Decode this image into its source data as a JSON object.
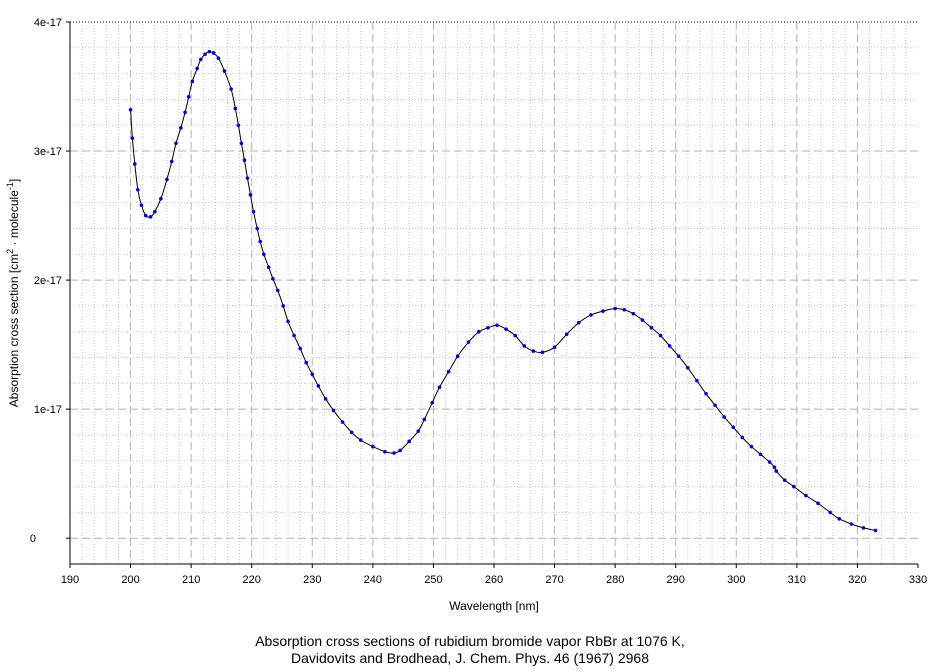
{
  "chart_data": {
    "type": "line",
    "xlabel": "Wavelength [nm]",
    "ylabel_main": "Absorption cross section [cm",
    "ylabel_sup1": "2",
    "ylabel_mid": " · molecule",
    "ylabel_sup2": "-1",
    "ylabel_end": "]",
    "xlim": [
      190,
      330
    ],
    "ylim": [
      -2e-18,
      4e-17
    ],
    "x_ticks": [
      190,
      200,
      210,
      220,
      230,
      240,
      250,
      260,
      270,
      280,
      290,
      300,
      310,
      320,
      330
    ],
    "y_ticks": [
      {
        "value": 0,
        "label": "0"
      },
      {
        "value": 1e-17,
        "label": "1e-17"
      },
      {
        "value": 2e-17,
        "label": "2e-17"
      },
      {
        "value": 3e-17,
        "label": "3e-17"
      },
      {
        "value": 4e-17,
        "label": "4e-17"
      }
    ],
    "grid": true,
    "line_color": "#000000",
    "marker_color": "#0000cc",
    "series": [
      {
        "x": [
          200.0,
          200.3,
          200.7,
          201.2,
          201.8,
          202.5,
          203.3,
          204.0,
          205.0,
          206.0,
          206.8,
          207.5,
          208.3,
          209.0,
          209.6,
          210.2,
          211.0,
          211.6,
          212.3,
          213.0,
          213.7,
          214.5,
          215.5,
          216.6,
          217.3,
          217.8,
          218.3,
          218.8,
          219.3,
          219.8,
          220.3,
          220.9,
          221.4,
          222.0,
          222.8,
          223.5,
          224.3,
          225.2,
          226.0,
          227.0,
          228.0,
          229.0,
          230.0,
          231.0,
          232.2,
          233.5,
          235.0,
          236.5,
          238.0,
          240.0,
          242.0,
          243.5,
          244.5,
          246.0,
          247.5,
          248.5,
          249.8,
          251.0,
          252.5,
          254.0,
          255.8,
          257.5,
          259.0,
          260.5,
          262.0,
          263.5,
          265.0,
          266.5,
          268.0,
          270.0,
          272.0,
          274.0,
          276.0,
          278.0,
          280.0,
          281.5,
          283.0,
          284.5,
          286.0,
          287.5,
          289.0,
          290.5,
          292.0,
          293.5,
          295.0,
          296.5,
          298.0,
          299.5,
          301.0,
          302.5,
          304.0,
          305.5,
          306.3,
          306.6,
          308.0,
          309.5,
          311.5,
          313.5,
          315.5,
          317.0,
          319.0,
          321.0,
          323.0
        ],
        "y": [
          3.32e-17,
          3.1e-17,
          2.9e-17,
          2.7e-17,
          2.58e-17,
          2.5e-17,
          2.49e-17,
          2.53e-17,
          2.63e-17,
          2.78e-17,
          2.92e-17,
          3.06e-17,
          3.18e-17,
          3.3e-17,
          3.42e-17,
          3.54e-17,
          3.64e-17,
          3.71e-17,
          3.75e-17,
          3.77e-17,
          3.76e-17,
          3.72e-17,
          3.62e-17,
          3.48e-17,
          3.33e-17,
          3.2e-17,
          3.06e-17,
          2.93e-17,
          2.79e-17,
          2.66e-17,
          2.53e-17,
          2.4e-17,
          2.3e-17,
          2.2e-17,
          2.1e-17,
          2.01e-17,
          1.92e-17,
          1.8e-17,
          1.68e-17,
          1.57e-17,
          1.47e-17,
          1.36e-17,
          1.27e-17,
          1.18e-17,
          1.08e-17,
          9.9e-18,
          9e-18,
          8.2e-18,
          7.6e-18,
          7.1e-18,
          6.7e-18,
          6.6e-18,
          6.8e-18,
          7.5e-18,
          8.3e-18,
          9.2e-18,
          1.05e-17,
          1.17e-17,
          1.29e-17,
          1.41e-17,
          1.52e-17,
          1.6e-17,
          1.63e-17,
          1.65e-17,
          1.62e-17,
          1.57e-17,
          1.49e-17,
          1.45e-17,
          1.44e-17,
          1.48e-17,
          1.58e-17,
          1.67e-17,
          1.73e-17,
          1.76e-17,
          1.78e-17,
          1.77e-17,
          1.74e-17,
          1.69e-17,
          1.63e-17,
          1.57e-17,
          1.49e-17,
          1.41e-17,
          1.32e-17,
          1.22e-17,
          1.12e-17,
          1.03e-17,
          9.4e-18,
          8.6e-18,
          7.8e-18,
          7.1e-18,
          6.5e-18,
          5.9e-18,
          5.5e-18,
          5.2e-18,
          4.5e-18,
          4e-18,
          3.3e-18,
          2.7e-18,
          2e-18,
          1.5e-18,
          1.1e-18,
          8e-19,
          6e-19
        ]
      }
    ]
  },
  "caption": {
    "line1": "Absorption cross sections of rubidium bromide vapor RbBr at 1076 K,",
    "line2": "Davidovits and Brodhead, J. Chem. Phys. 46 (1967) 2968"
  }
}
